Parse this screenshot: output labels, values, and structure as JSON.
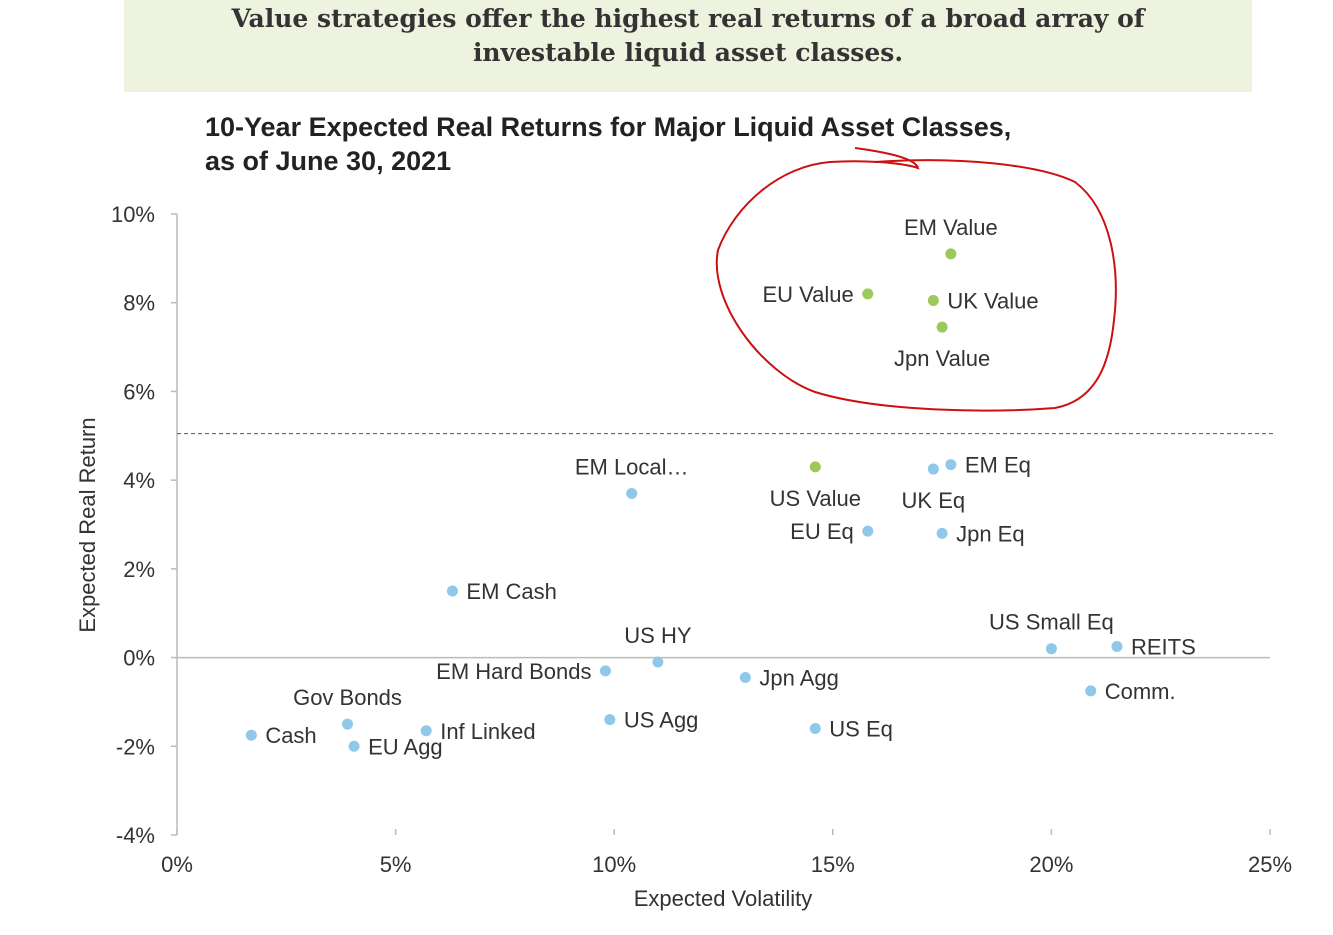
{
  "banner": {
    "line1": "Value strategies offer the highest real returns of a broad array of",
    "line2": "investable liquid asset classes."
  },
  "chart_data": {
    "type": "scatter",
    "title_line1": "10-Year Expected Real Returns for Major Liquid Asset Classes,",
    "title_line2": "as of June 30, 2021",
    "xlabel": "Expected Volatility",
    "ylabel": "Expected Real Return",
    "xlim": [
      0,
      25
    ],
    "ylim": [
      -4,
      10
    ],
    "x_ticks": [
      0,
      5,
      10,
      15,
      20,
      25
    ],
    "y_ticks": [
      -4,
      -2,
      0,
      2,
      4,
      6,
      8,
      10
    ],
    "x_tick_labels": [
      "0%",
      "5%",
      "10%",
      "15%",
      "20%",
      "25%"
    ],
    "y_tick_labels": [
      "-4%",
      "-2%",
      "0%",
      "2%",
      "4%",
      "6%",
      "8%",
      "10%"
    ],
    "reference_line_y": 5.05,
    "grid": false,
    "colors": {
      "value": "#9dc85b",
      "other": "#8fc8ea",
      "annotation": "#cc1111",
      "axis": "#bbbbbb",
      "reference": "#555555"
    },
    "points": [
      {
        "name": "EM Value",
        "x": 17.7,
        "y": 9.1,
        "group": "value",
        "pos": "above"
      },
      {
        "name": "EU Value",
        "x": 15.8,
        "y": 8.2,
        "group": "value",
        "pos": "left"
      },
      {
        "name": "UK Value",
        "x": 17.3,
        "y": 8.05,
        "group": "value",
        "pos": "right"
      },
      {
        "name": "Jpn Value",
        "x": 17.5,
        "y": 7.45,
        "group": "value",
        "pos": "below"
      },
      {
        "name": "US Value",
        "x": 14.6,
        "y": 4.3,
        "group": "value",
        "pos": "below"
      },
      {
        "name": "EM Local…",
        "x": 10.4,
        "y": 3.7,
        "group": "other",
        "pos": "above"
      },
      {
        "name": "EM Eq",
        "x": 17.7,
        "y": 4.35,
        "group": "other",
        "pos": "right"
      },
      {
        "name": "UK Eq",
        "x": 17.3,
        "y": 4.25,
        "group": "other",
        "pos": "below"
      },
      {
        "name": "EU Eq",
        "x": 15.8,
        "y": 2.85,
        "group": "other",
        "pos": "left"
      },
      {
        "name": "Jpn Eq",
        "x": 17.5,
        "y": 2.8,
        "group": "other",
        "pos": "right"
      },
      {
        "name": "EM Cash",
        "x": 6.3,
        "y": 1.5,
        "group": "other",
        "pos": "right"
      },
      {
        "name": "US HY",
        "x": 11.0,
        "y": -0.1,
        "group": "other",
        "pos": "above"
      },
      {
        "name": "EM Hard Bonds",
        "x": 9.8,
        "y": -0.3,
        "group": "other",
        "pos": "left"
      },
      {
        "name": "Jpn Agg",
        "x": 13.0,
        "y": -0.45,
        "group": "other",
        "pos": "right"
      },
      {
        "name": "US Small Eq",
        "x": 20.0,
        "y": 0.2,
        "group": "other",
        "pos": "above"
      },
      {
        "name": "REITS",
        "x": 21.5,
        "y": 0.25,
        "group": "other",
        "pos": "right"
      },
      {
        "name": "Comm.",
        "x": 20.9,
        "y": -0.75,
        "group": "other",
        "pos": "right"
      },
      {
        "name": "Gov Bonds",
        "x": 3.9,
        "y": -1.5,
        "group": "other",
        "pos": "above"
      },
      {
        "name": "Cash",
        "x": 1.7,
        "y": -1.75,
        "group": "other",
        "pos": "right"
      },
      {
        "name": "EU Agg",
        "x": 4.05,
        "y": -2.0,
        "group": "other",
        "pos": "right"
      },
      {
        "name": "Inf Linked",
        "x": 5.7,
        "y": -1.65,
        "group": "other",
        "pos": "right"
      },
      {
        "name": "US Agg",
        "x": 9.9,
        "y": -1.4,
        "group": "other",
        "pos": "right"
      },
      {
        "name": "US Eq",
        "x": 14.6,
        "y": -1.6,
        "group": "other",
        "pos": "right"
      }
    ]
  }
}
